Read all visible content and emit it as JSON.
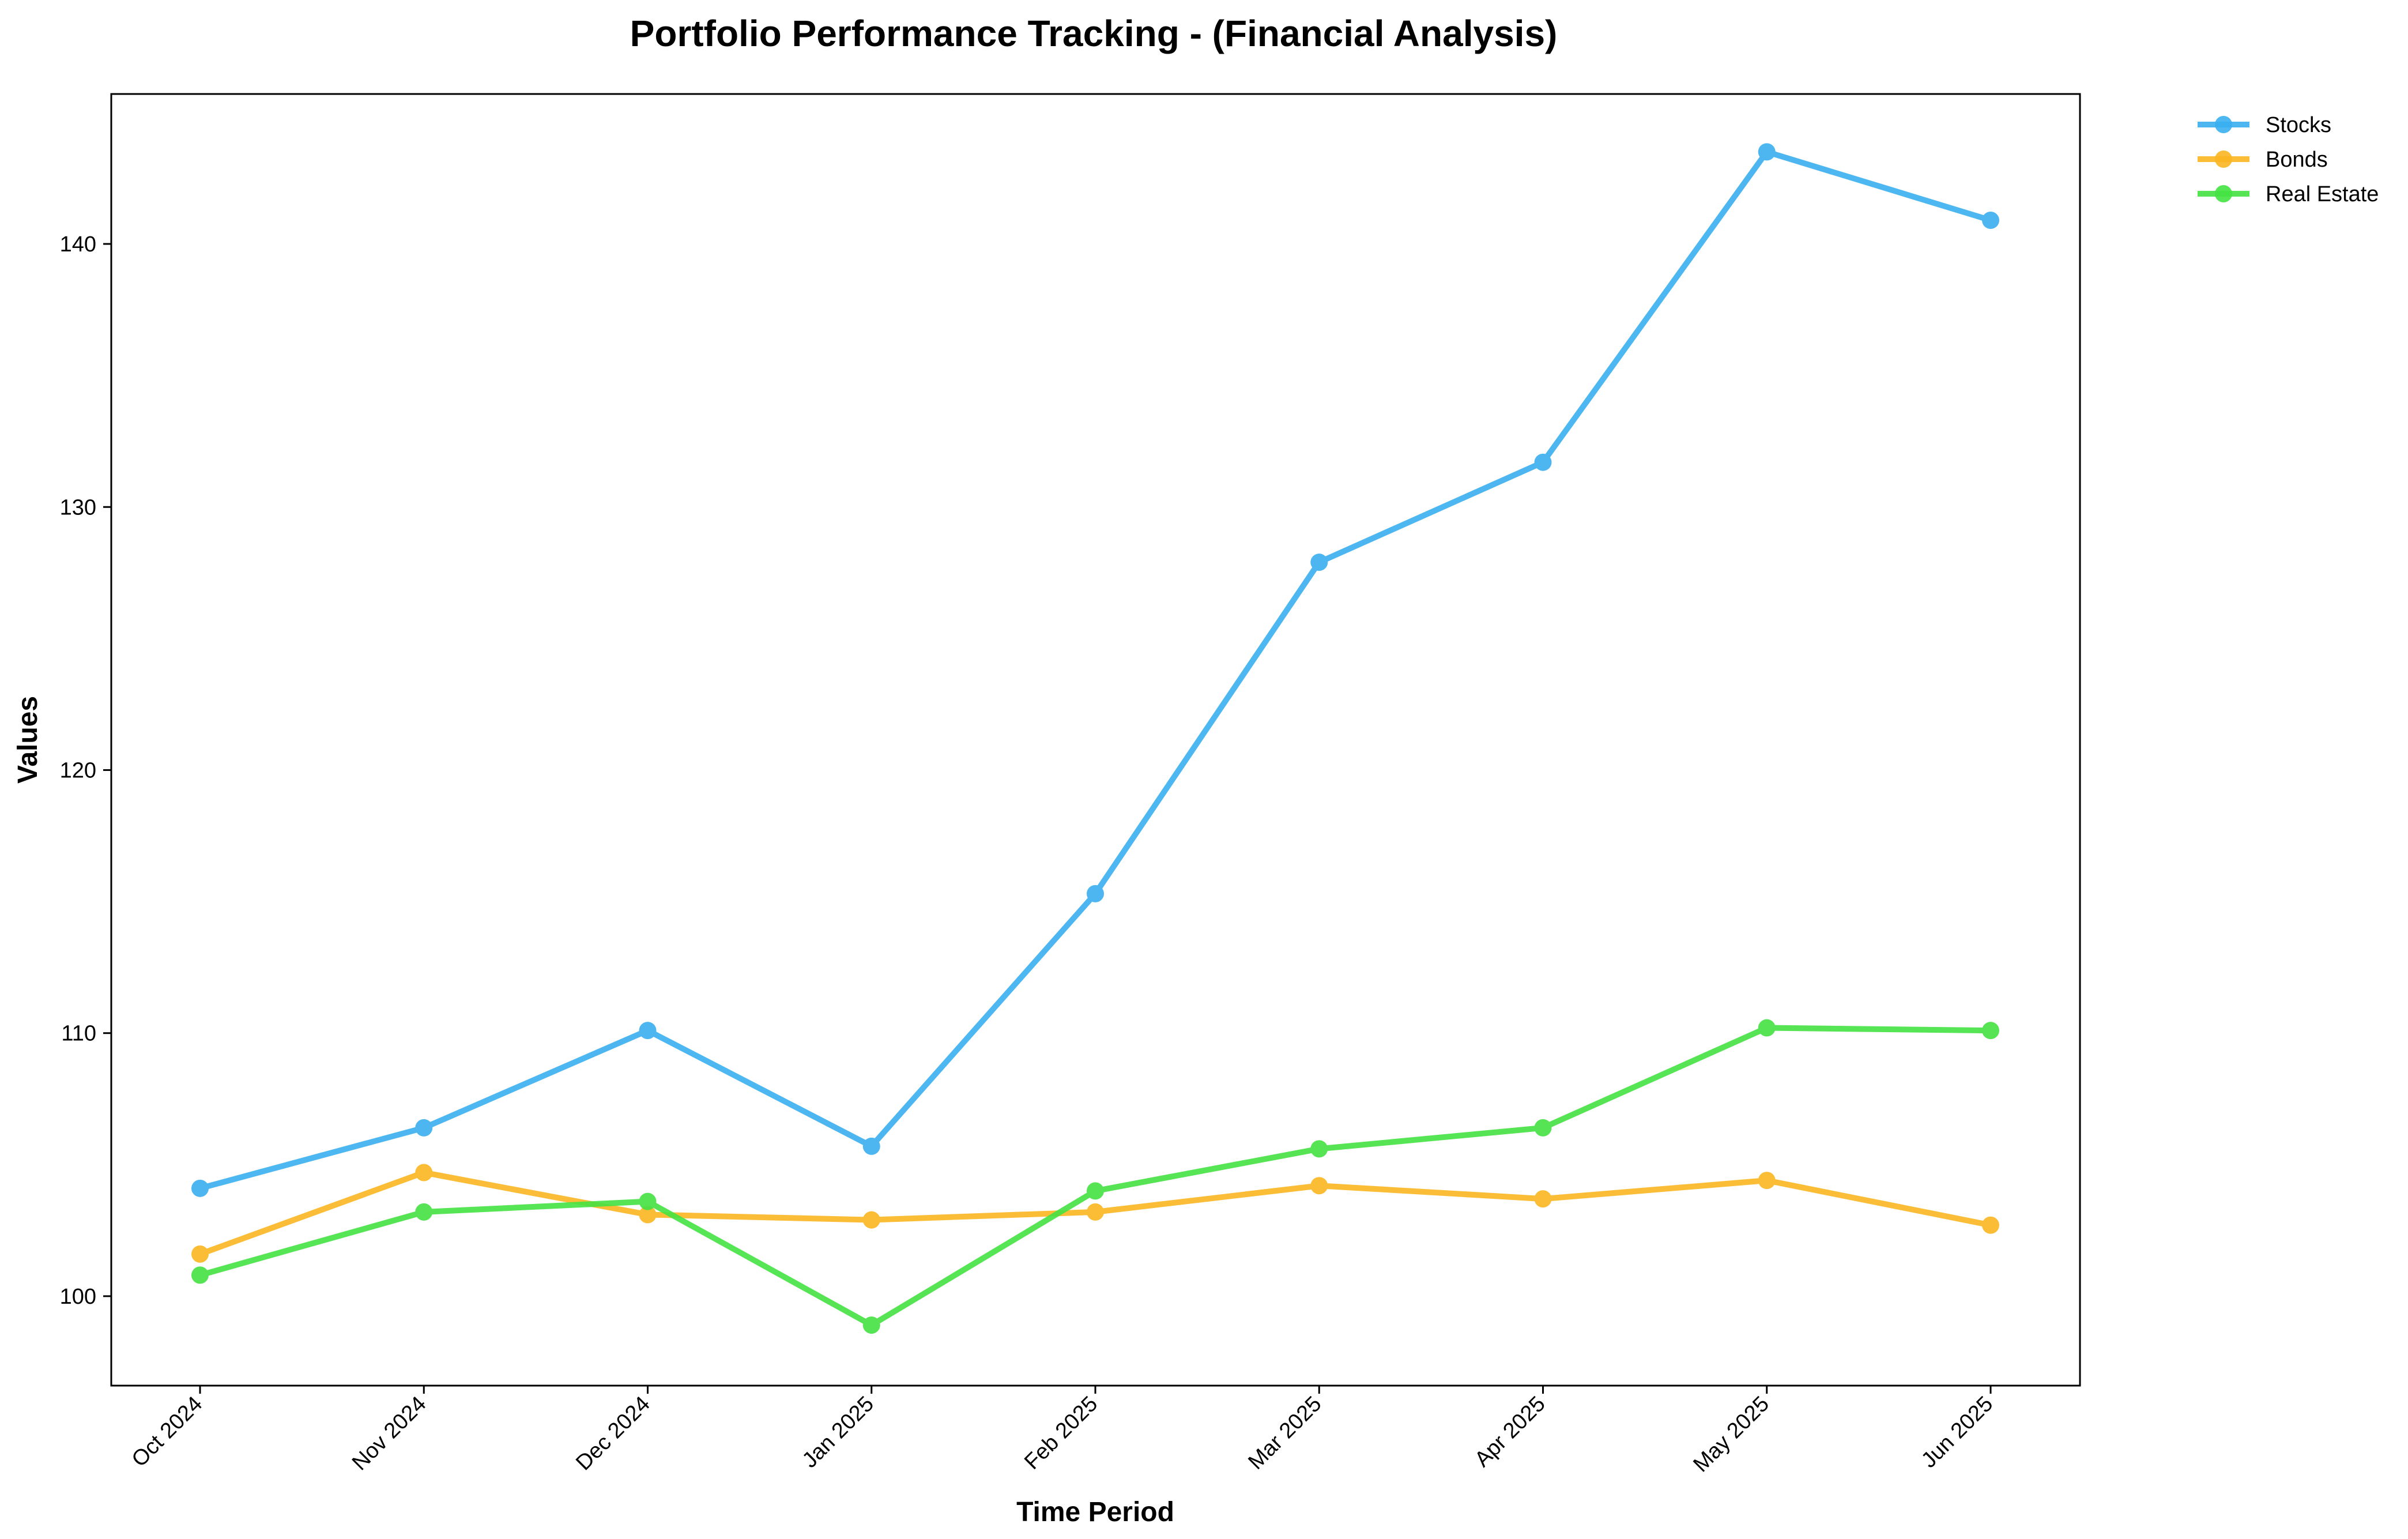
{
  "chart_data": {
    "type": "line",
    "title": "Portfolio Performance Tracking - (Financial Analysis)",
    "xlabel": "Time Period",
    "ylabel": "Values",
    "categories": [
      "Oct 2024",
      "Nov 2024",
      "Dec 2024",
      "Jan 2025",
      "Feb 2025",
      "Mar 2025",
      "Apr 2025",
      "May 2025",
      "Jun 2025"
    ],
    "ylim": [
      96.6,
      145.7
    ],
    "yticks": [
      100,
      110,
      120,
      130,
      140
    ],
    "grid": false,
    "legend_position": "outside top-right",
    "series": [
      {
        "name": "Stocks",
        "color": "#3AAFF0",
        "values": [
          104.1,
          106.4,
          110.1,
          105.7,
          115.3,
          127.9,
          131.7,
          143.5,
          140.9
        ]
      },
      {
        "name": "Bonds",
        "color": "#FBB621",
        "values": [
          101.6,
          104.7,
          103.1,
          102.9,
          103.2,
          104.2,
          103.7,
          104.4,
          102.7
        ]
      },
      {
        "name": "Real Estate",
        "color": "#44E243",
        "values": [
          100.8,
          103.2,
          103.6,
          98.9,
          104.0,
          105.6,
          106.4,
          110.2,
          110.1
        ]
      }
    ]
  }
}
